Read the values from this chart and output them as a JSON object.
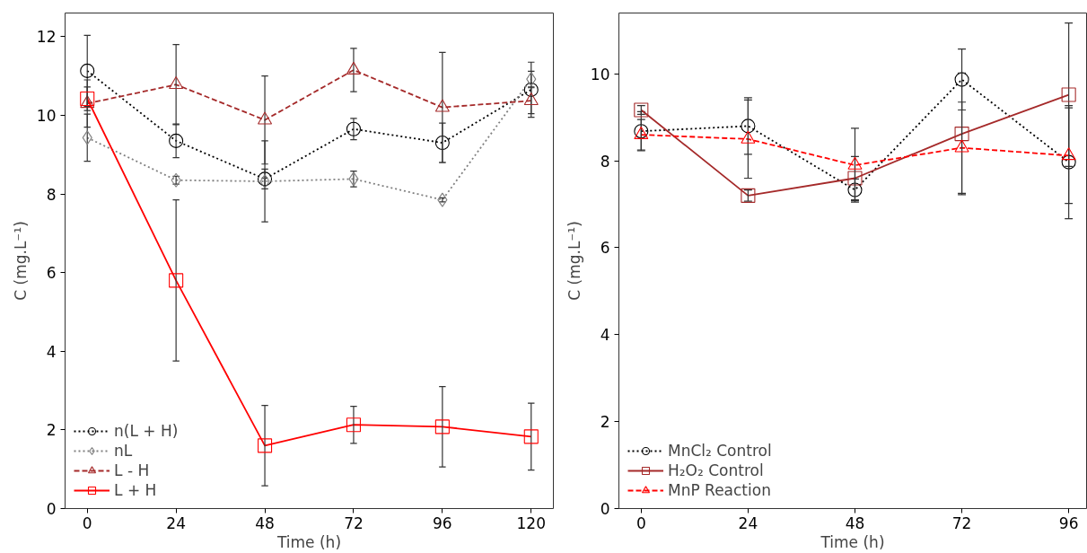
{
  "chart_data": [
    {
      "type": "line",
      "xlabel": "Time (h)",
      "ylabel": "C (mg.L⁻¹)",
      "x": [
        0,
        24,
        48,
        72,
        96,
        120
      ],
      "xlim": [
        -6,
        126
      ],
      "ylim": [
        0,
        12.6
      ],
      "xticks": [
        0,
        24,
        48,
        72,
        96,
        120
      ],
      "yticks": [
        0,
        2,
        4,
        6,
        8,
        10,
        12
      ],
      "grid": false,
      "legend": "bottom left",
      "series": [
        {
          "name": "n(L + H)",
          "color": "#000000",
          "marker": "circle",
          "line_style": "dotted",
          "values": [
            11.13,
            9.35,
            8.38,
            9.65,
            9.3,
            10.65
          ],
          "errors": [
            0.9,
            0.43,
            0.25,
            0.27,
            0.5,
            0.7
          ]
        },
        {
          "name": "nL",
          "color": "#808080",
          "marker": "diamond",
          "line_style": "dotted",
          "values": [
            9.43,
            8.35,
            8.32,
            8.38,
            7.85,
            10.92
          ],
          "errors": [
            0.6,
            0.1,
            1.03,
            0.2,
            0.05,
            0.2
          ]
        },
        {
          "name": "L - H",
          "color": "#a52a2a",
          "marker": "triangle",
          "line_style": "dashed",
          "values": [
            10.3,
            10.78,
            9.88,
            11.15,
            10.2,
            10.37
          ],
          "errors": [
            0.6,
            1.02,
            1.12,
            0.55,
            1.4,
            0.33
          ]
        },
        {
          "name": "L + H",
          "color": "#ff0000",
          "marker": "square",
          "line_style": "solid",
          "values": [
            10.42,
            5.8,
            1.6,
            2.13,
            2.08,
            1.83
          ],
          "errors": [
            0.3,
            2.05,
            1.02,
            0.47,
            1.02,
            0.85
          ]
        }
      ]
    },
    {
      "type": "line",
      "xlabel": "Time (h)",
      "ylabel": "C (mg.L⁻¹)",
      "x": [
        0,
        24,
        48,
        72,
        96
      ],
      "xlim": [
        -5,
        100
      ],
      "ylim": [
        0,
        11.4
      ],
      "xticks": [
        0,
        24,
        48,
        72,
        96
      ],
      "yticks": [
        0,
        2,
        4,
        6,
        8,
        10
      ],
      "grid": false,
      "legend": "bottom left",
      "series": [
        {
          "name": "MnCl₂ Control",
          "color": "#000000",
          "marker": "circle",
          "line_style": "dotted",
          "values": [
            8.68,
            8.8,
            7.33,
            9.87,
            7.97
          ],
          "errors": [
            0.45,
            0.65,
            0.25,
            0.7,
            1.3
          ]
        },
        {
          "name": "H₂O₂ Control",
          "color": "#a52a2a",
          "marker": "square",
          "line_style": "solid",
          "values": [
            9.17,
            7.2,
            7.6,
            8.62,
            9.52
          ],
          "errors": [
            0.1,
            0.13,
            0.5,
            1.4,
            1.65
          ]
        },
        {
          "name": "MnP Reaction",
          "color": "#ff0000",
          "marker": "triangle",
          "line_style": "dashed",
          "values": [
            8.6,
            8.5,
            7.9,
            8.3,
            8.12
          ],
          "errors": [
            0.35,
            0.9,
            0.85,
            1.05,
            1.1
          ]
        }
      ]
    }
  ]
}
